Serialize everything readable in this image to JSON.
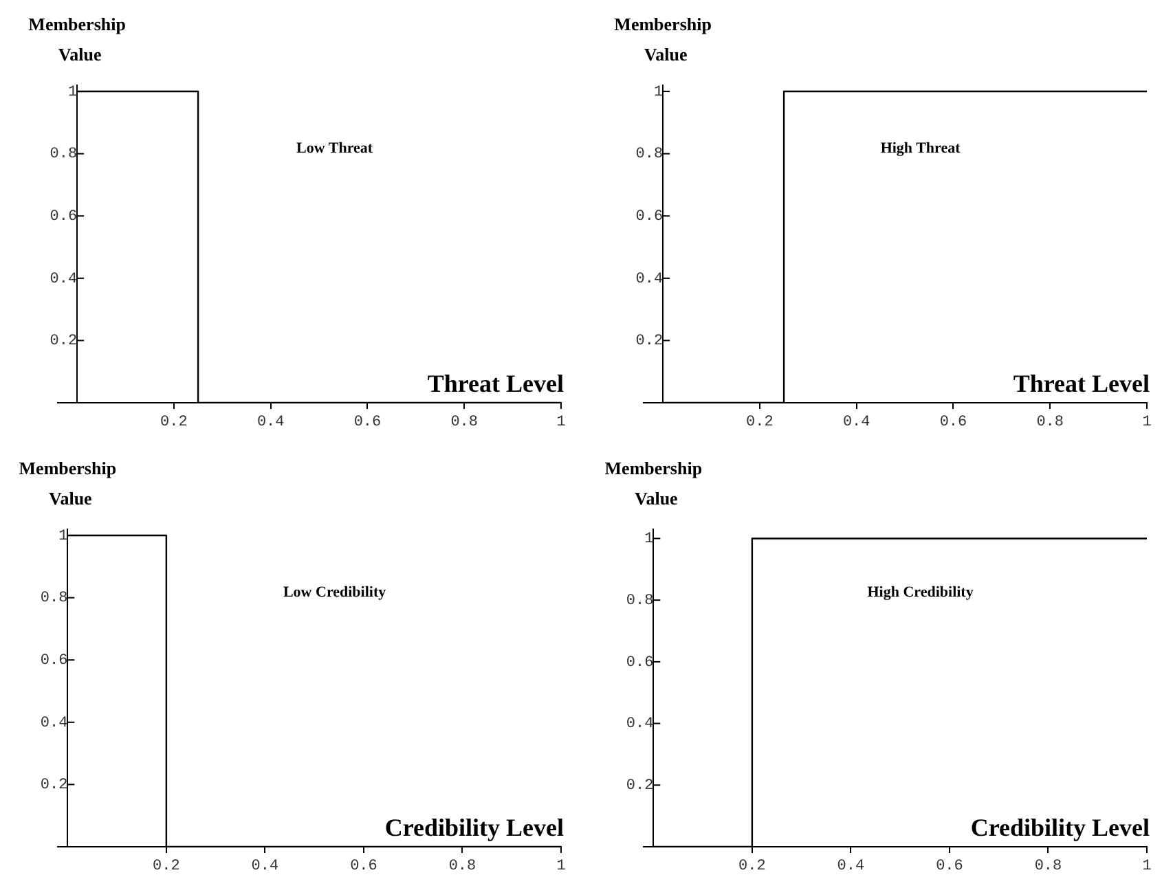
{
  "chart_data": [
    {
      "type": "line",
      "xlabel": "Threat Level",
      "ylabel": "Membership Value",
      "marker": "none",
      "annotations": [
        "Low Threat"
      ],
      "series": [
        {
          "color": "#000000",
          "x": [
            0,
            0.25,
            0.25,
            1
          ],
          "values": [
            1,
            1,
            0,
            0
          ]
        }
      ],
      "xlim": [
        -0.04,
        1
      ],
      "ylim": [
        0,
        1.02
      ],
      "xticks": [
        0.2,
        0.4,
        0.6,
        0.8,
        1
      ],
      "yticks": [
        0.2,
        0.4,
        0.6,
        0.8,
        1
      ]
    },
    {
      "type": "line",
      "xlabel": "Threat Level",
      "ylabel": "Membership Value",
      "marker": "none",
      "annotations": [
        "High Threat"
      ],
      "series": [
        {
          "color": "#000000",
          "x": [
            0,
            0.25,
            0.25,
            1
          ],
          "values": [
            0,
            0,
            1,
            1
          ]
        }
      ],
      "xlim": [
        -0.04,
        1
      ],
      "ylim": [
        0,
        1.02
      ],
      "xticks": [
        0.2,
        0.4,
        0.6,
        0.8,
        1
      ],
      "yticks": [
        0.2,
        0.4,
        0.6,
        0.8,
        1
      ]
    },
    {
      "type": "line",
      "xlabel": "Credibility Level",
      "ylabel": "Membership Value",
      "marker": "none",
      "annotations": [
        "Low Credibility"
      ],
      "series": [
        {
          "color": "#000000",
          "x": [
            0,
            0.2,
            0.2,
            1
          ],
          "values": [
            1,
            1,
            0,
            0
          ]
        }
      ],
      "xlim": [
        -0.02,
        1
      ],
      "ylim": [
        0,
        1.02
      ],
      "xticks": [
        0.2,
        0.4,
        0.6,
        0.8,
        1
      ],
      "yticks": [
        0.2,
        0.4,
        0.6,
        0.8,
        1
      ]
    },
    {
      "type": "line",
      "xlabel": "Credibility Level",
      "ylabel": "Membership Value",
      "marker": "none",
      "annotations": [
        "High Credibility"
      ],
      "series": [
        {
          "color": "#000000",
          "x": [
            0,
            0.2,
            0.2,
            1
          ],
          "values": [
            0,
            0,
            1,
            1
          ]
        }
      ],
      "xlim": [
        -0.02,
        1
      ],
      "ylim": [
        0,
        1.03
      ],
      "xticks": [
        0.2,
        0.4,
        0.6,
        0.8,
        1
      ],
      "yticks": [
        0.2,
        0.4,
        0.6,
        0.8,
        1
      ]
    }
  ]
}
